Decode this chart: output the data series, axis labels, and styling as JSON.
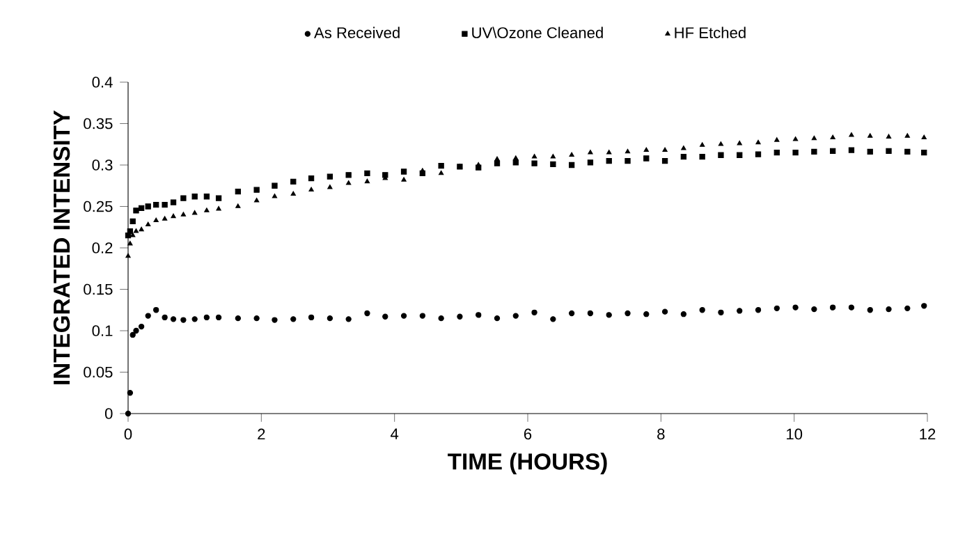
{
  "chart_data": {
    "type": "scatter",
    "xlabel": "TIME (HOURS)",
    "ylabel": "INTEGRATED INTENSITY",
    "x": [
      0,
      0.03,
      0.07,
      0.12,
      0.2,
      0.3,
      0.42,
      0.55,
      0.68,
      0.83,
      1.0,
      1.18,
      1.36,
      1.65,
      1.93,
      2.2,
      2.48,
      2.75,
      3.03,
      3.31,
      3.59,
      3.86,
      4.14,
      4.42,
      4.7,
      4.98,
      5.26,
      5.54,
      5.82,
      6.1,
      6.38,
      6.66,
      6.94,
      7.22,
      7.5,
      7.78,
      8.06,
      8.34,
      8.62,
      8.9,
      9.18,
      9.46,
      9.74,
      10.02,
      10.3,
      10.58,
      10.86,
      11.14,
      11.42,
      11.7,
      11.95
    ],
    "series": [
      {
        "name": "As Received",
        "color": "#000000",
        "marker": "circle",
        "values": [
          0,
          0.025,
          0.095,
          0.1,
          0.105,
          0.118,
          0.125,
          0.116,
          0.114,
          0.113,
          0.114,
          0.116,
          0.116,
          0.115,
          0.115,
          0.113,
          0.114,
          0.116,
          0.115,
          0.114,
          0.121,
          0.117,
          0.118,
          0.118,
          0.115,
          0.117,
          0.119,
          0.115,
          0.118,
          0.122,
          0.114,
          0.121,
          0.121,
          0.119,
          0.121,
          0.12,
          0.123,
          0.12,
          0.125,
          0.122,
          0.124,
          0.125,
          0.127,
          0.128,
          0.126,
          0.128,
          0.128,
          0.125,
          0.126,
          0.127,
          0.13
        ]
      },
      {
        "name": "UV\\Ozone Cleaned",
        "color": "#000000",
        "marker": "square",
        "values": [
          0.215,
          0.22,
          0.232,
          0.245,
          0.248,
          0.25,
          0.252,
          0.252,
          0.255,
          0.26,
          0.262,
          0.262,
          0.26,
          0.268,
          0.27,
          0.275,
          0.28,
          0.284,
          0.286,
          0.288,
          0.29,
          0.288,
          0.292,
          0.29,
          0.299,
          0.298,
          0.297,
          0.302,
          0.303,
          0.302,
          0.301,
          0.3,
          0.303,
          0.305,
          0.305,
          0.308,
          0.305,
          0.31,
          0.31,
          0.312,
          0.312,
          0.313,
          0.315,
          0.315,
          0.316,
          0.317,
          0.318,
          0.316,
          0.317,
          0.316,
          0.315
        ]
      },
      {
        "name": "HF Etched",
        "color": "#000000",
        "marker": "triangle",
        "values": [
          0.19,
          0.205,
          0.215,
          0.22,
          0.222,
          0.228,
          0.233,
          0.235,
          0.238,
          0.24,
          0.242,
          0.245,
          0.247,
          0.25,
          0.257,
          0.262,
          0.265,
          0.27,
          0.273,
          0.278,
          0.28,
          0.284,
          0.282,
          0.293,
          0.29,
          0.298,
          0.3,
          0.307,
          0.308,
          0.31,
          0.31,
          0.312,
          0.315,
          0.315,
          0.316,
          0.318,
          0.318,
          0.32,
          0.324,
          0.325,
          0.326,
          0.327,
          0.33,
          0.331,
          0.332,
          0.333,
          0.336,
          0.335,
          0.334,
          0.335,
          0.333
        ]
      }
    ],
    "xlim": [
      0,
      12
    ],
    "ylim": [
      0,
      0.4
    ],
    "xticks": [
      0,
      2,
      4,
      6,
      8,
      10,
      12
    ],
    "yticks": [
      0,
      0.05,
      0.1,
      0.15,
      0.2,
      0.25,
      0.3,
      0.35,
      0.4
    ],
    "legend": "top",
    "grid": false
  }
}
